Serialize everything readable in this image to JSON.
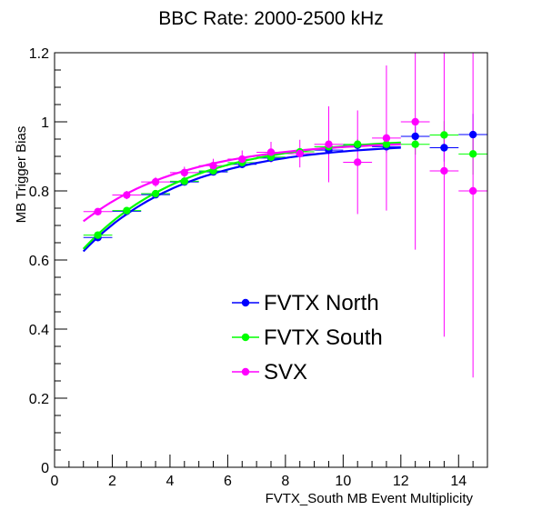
{
  "chart_data": {
    "type": "scatter",
    "title": "BBC Rate: 2000-2500 kHz",
    "xlabel": "FVTX_South MB Event Multiplicity",
    "ylabel": "MB Trigger Bias",
    "xlim": [
      0,
      15
    ],
    "ylim": [
      0,
      1.2
    ],
    "x_ticks": [
      0,
      2,
      4,
      6,
      8,
      10,
      12,
      14
    ],
    "y_ticks": [
      0,
      0.2,
      0.4,
      0.6,
      0.8,
      1,
      1.2
    ],
    "y_tick_labels": [
      "0",
      "0.2",
      "0.4",
      "0.6",
      "0.8",
      "1",
      "1.2"
    ],
    "legend_position": "center-right",
    "grid": false,
    "series": [
      {
        "name": "FVTX North",
        "color": "#0000ff",
        "x": [
          1.5,
          2.5,
          3.5,
          4.5,
          5.5,
          6.5,
          7.5,
          8.5,
          9.5,
          10.5,
          11.5,
          12.5,
          13.5,
          14.5
        ],
        "y": [
          0.665,
          0.741,
          0.789,
          0.826,
          0.855,
          0.877,
          0.895,
          0.908,
          0.918,
          0.932,
          0.928,
          0.958,
          0.925,
          0.963
        ],
        "y_err": [
          0.005,
          0.005,
          0.006,
          0.006,
          0.007,
          0.008,
          0.009,
          0.01,
          0.012,
          0.015,
          0.018,
          0.03,
          0.04,
          0.06
        ],
        "fit": {
          "x": [
            1.0,
            12.0
          ],
          "y": [
            0.625,
            0.925
          ]
        }
      },
      {
        "name": "FVTX South",
        "color": "#00ff00",
        "x": [
          1.5,
          2.5,
          3.5,
          4.5,
          5.5,
          6.5,
          7.5,
          8.5,
          9.5,
          10.5,
          11.5,
          12.5,
          13.5,
          14.5
        ],
        "y": [
          0.672,
          0.743,
          0.792,
          0.828,
          0.858,
          0.882,
          0.898,
          0.913,
          0.928,
          0.935,
          0.935,
          0.935,
          0.962,
          0.907
        ],
        "y_err": [
          0.005,
          0.005,
          0.006,
          0.006,
          0.007,
          0.008,
          0.009,
          0.01,
          0.012,
          0.015,
          0.018,
          0.03,
          0.04,
          0.06
        ],
        "fit": {
          "x": [
            1.0,
            12.0
          ],
          "y": [
            0.632,
            0.94
          ]
        }
      },
      {
        "name": "SVX",
        "color": "#ff00ff",
        "x": [
          1.5,
          2.5,
          3.5,
          4.5,
          5.5,
          6.5,
          7.5,
          8.5,
          9.5,
          10.5,
          11.5,
          12.5,
          13.5,
          14.5
        ],
        "y": [
          0.74,
          0.788,
          0.826,
          0.853,
          0.873,
          0.892,
          0.912,
          0.908,
          0.935,
          0.883,
          0.953,
          1.0,
          0.858,
          0.8
        ],
        "y_err": [
          0.01,
          0.012,
          0.014,
          0.017,
          0.02,
          0.025,
          0.03,
          0.04,
          0.11,
          0.15,
          0.21,
          0.37,
          0.48,
          0.54
        ],
        "fit": {
          "x": [
            1.0,
            12.0
          ],
          "y": [
            0.712,
            0.935
          ]
        }
      }
    ]
  }
}
